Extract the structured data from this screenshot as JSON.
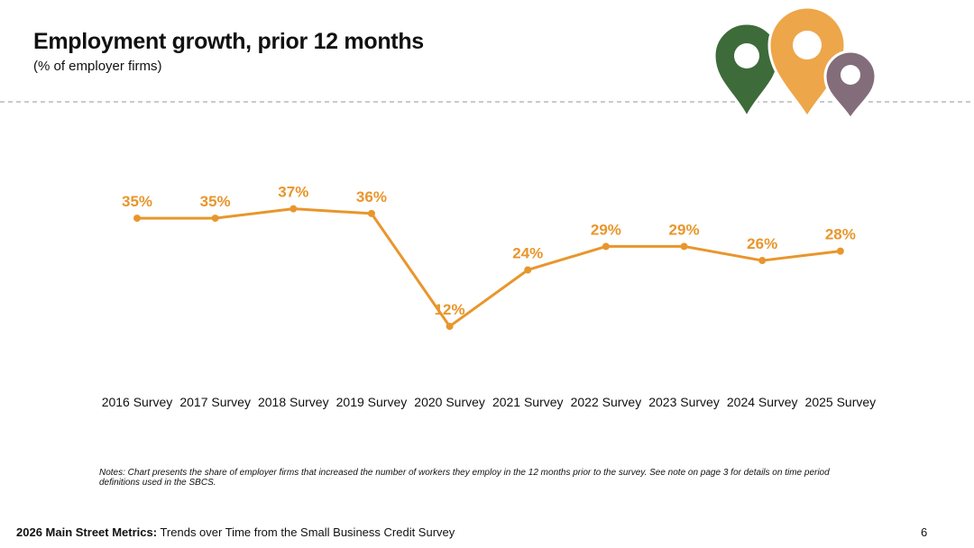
{
  "chart_data": {
    "type": "line",
    "title": "Employment growth, prior 12 months",
    "subtitle": "(% of employer firms)",
    "categories": [
      "2016 Survey",
      "2017 Survey",
      "2018 Survey",
      "2019 Survey",
      "2020 Survey",
      "2021 Survey",
      "2022 Survey",
      "2023 Survey",
      "2024 Survey",
      "2025 Survey"
    ],
    "series": [
      {
        "color": "#e8962c",
        "values": [
          35,
          35,
          37,
          36,
          12,
          24,
          29,
          29,
          26,
          28
        ],
        "value_labels": [
          "35%",
          "35%",
          "37%",
          "36%",
          "12%",
          "24%",
          "29%",
          "29%",
          "26%",
          "28%"
        ]
      }
    ],
    "note": "Notes: Chart presents the share of employer firms that increased the number of workers they employ in the 12 months prior to the survey. See note on page 3 for details on time period definitions used in the SBCS."
  },
  "footer": {
    "bold": "2026 Main Street Metrics:",
    "text": "Trends over Time from the Small Business Credit Survey",
    "page": "6"
  }
}
